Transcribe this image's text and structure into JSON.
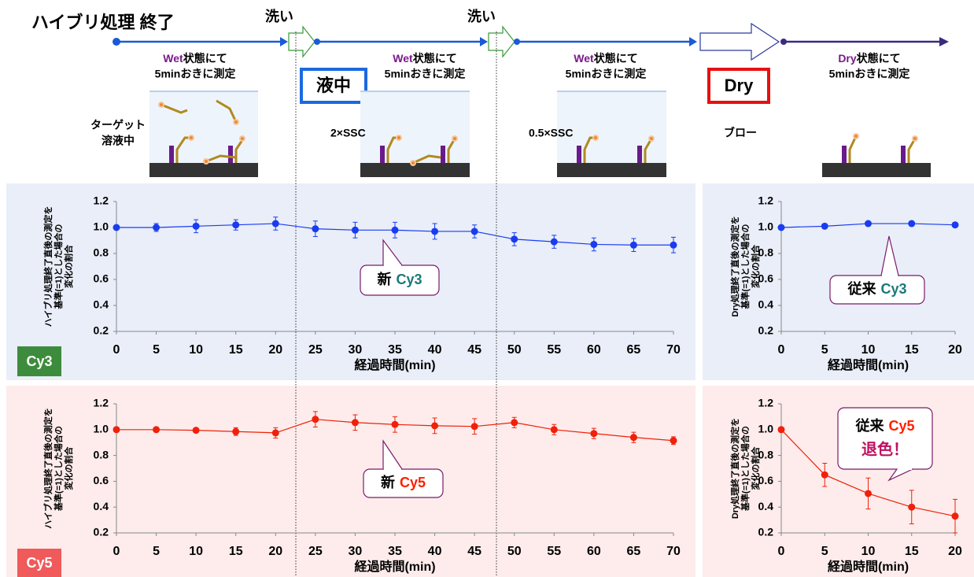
{
  "header": {
    "title": "ハイブリ処理 終了",
    "washes": [
      "洗い",
      "洗い"
    ],
    "steps": [
      {
        "mode": "Wet",
        "text": "状態にて",
        "detail": "5minおきに測定"
      },
      {
        "mode": "Wet",
        "text": "状態にて",
        "detail": "5minおきに測定"
      },
      {
        "mode": "Wet",
        "text": "状態にて",
        "detail": "5minおきに測定"
      },
      {
        "mode": "Dry",
        "text": "状態にて",
        "detail": "5minおきに測定"
      }
    ],
    "states": [
      "液中",
      "Dry"
    ],
    "conditions": [
      [
        "ターゲット",
        "溶液中"
      ],
      [
        "2×SSC"
      ],
      [
        "0.5×SSC"
      ],
      [
        "ブロー"
      ]
    ]
  },
  "panels": {
    "labels": [
      "Cy3",
      "Cy5"
    ]
  },
  "chart_data": [
    {
      "type": "line",
      "ylabel": [
        "ハイブリ処理終了直後の測定を",
        "基準(=1)とした場合の",
        "変化の割合"
      ],
      "xlabel": "経過時間(min)",
      "x": [
        0,
        5,
        10,
        15,
        20,
        25,
        30,
        35,
        40,
        45,
        50,
        55,
        60,
        65,
        70
      ],
      "xlim": [
        0,
        70
      ],
      "xticks": [
        0,
        5,
        10,
        15,
        20,
        25,
        30,
        35,
        40,
        45,
        50,
        55,
        60,
        65,
        70
      ],
      "ylim": [
        0.2,
        1.2
      ],
      "yticks": [
        0.2,
        0.4,
        0.6,
        0.8,
        {
          "value": 1,
          "label": "1.0"
        },
        1.2
      ],
      "grid": false,
      "series": [
        {
          "color": "#1a3cf0",
          "values": [
            1.0,
            1.0,
            1.01,
            1.02,
            1.03,
            0.99,
            0.98,
            0.98,
            0.97,
            0.97,
            0.91,
            0.89,
            0.87,
            0.865,
            0.865
          ],
          "errors": [
            0,
            0.03,
            0.05,
            0.04,
            0.05,
            0.06,
            0.06,
            0.06,
            0.06,
            0.05,
            0.05,
            0.05,
            0.05,
            0.05,
            0.06
          ]
        }
      ],
      "annotation": {
        "text": "新",
        "highlight": "Cy3",
        "highlight_color": "#1a7a78"
      }
    },
    {
      "type": "line",
      "ylabel": [
        "Dry処理終了直後の測定を",
        "基準(=1)とした場合の",
        "変化の割合"
      ],
      "xlabel": "経過時間(min)",
      "x": [
        0,
        5,
        10,
        15,
        20
      ],
      "xlim": [
        0,
        20
      ],
      "xticks": [
        0,
        5,
        10,
        15,
        20
      ],
      "ylim": [
        0.2,
        1.2
      ],
      "yticks": [
        0.2,
        0.4,
        0.6,
        0.8,
        {
          "value": 1,
          "label": "1.0"
        },
        1.2
      ],
      "grid": false,
      "series": [
        {
          "color": "#1a3cf0",
          "values": [
            1.0,
            1.01,
            1.03,
            1.03,
            1.02
          ],
          "errors": [
            0,
            0.01,
            0.01,
            0.01,
            0.01
          ]
        }
      ],
      "annotation": {
        "text": "従来",
        "highlight": "Cy3",
        "highlight_color": "#1a7a78"
      }
    },
    {
      "type": "line",
      "ylabel": [
        "ハイブリ処理終了直後の測定を",
        "基準(=1)とした場合の",
        "変化の割合"
      ],
      "xlabel": "経過時間(min)",
      "x": [
        0,
        5,
        10,
        15,
        20,
        25,
        30,
        35,
        40,
        45,
        50,
        55,
        60,
        65,
        70
      ],
      "xlim": [
        0,
        70
      ],
      "xticks": [
        0,
        5,
        10,
        15,
        20,
        25,
        30,
        35,
        40,
        45,
        50,
        55,
        60,
        65,
        70
      ],
      "ylim": [
        0.2,
        1.2
      ],
      "yticks": [
        0.2,
        0.4,
        0.6,
        0.8,
        {
          "value": 1,
          "label": "1.0"
        },
        1.2
      ],
      "grid": false,
      "series": [
        {
          "color": "#f0200a",
          "values": [
            1.0,
            1.0,
            0.995,
            0.985,
            0.975,
            1.08,
            1.055,
            1.04,
            1.03,
            1.025,
            1.055,
            1.0,
            0.97,
            0.94,
            0.915
          ],
          "errors": [
            0,
            0.01,
            0.01,
            0.03,
            0.04,
            0.06,
            0.06,
            0.06,
            0.06,
            0.06,
            0.04,
            0.04,
            0.04,
            0.04,
            0.03
          ]
        }
      ],
      "annotation": {
        "text": "新",
        "highlight": "Cy5",
        "highlight_color": "#ff2000"
      }
    },
    {
      "type": "line",
      "ylabel": [
        "Dry処理終了直後の測定を",
        "基準(=1)とした場合の",
        "変化の割合"
      ],
      "xlabel": "経過時間(min)",
      "x": [
        0,
        5,
        10,
        15,
        20
      ],
      "xlim": [
        0,
        20
      ],
      "xticks": [
        0,
        5,
        10,
        15,
        20
      ],
      "ylim": [
        0.2,
        1.2
      ],
      "yticks": [
        0.2,
        0.4,
        0.6,
        0.8,
        {
          "value": 1,
          "label": "1.0"
        },
        1.2
      ],
      "grid": false,
      "series": [
        {
          "color": "#f0200a",
          "values": [
            1.0,
            0.65,
            0.505,
            0.4,
            0.33
          ],
          "errors": [
            0,
            0.09,
            0.12,
            0.13,
            0.13
          ]
        }
      ],
      "annotation": {
        "text": "従来",
        "highlight": "Cy5",
        "highlight_color": "#ff2000",
        "note": "退色！"
      }
    }
  ]
}
